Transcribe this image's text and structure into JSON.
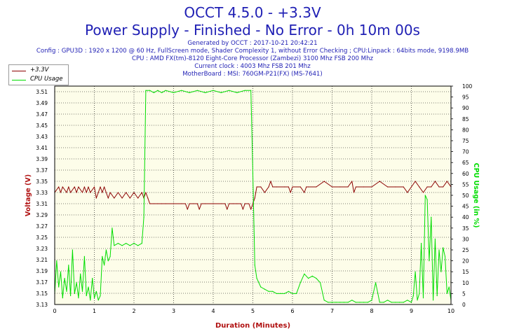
{
  "header": {
    "title": "OCCT 4.5.0 - +3.3V",
    "subtitle": "Power Supply - Finished - No Error - 0h 10m 00s",
    "info": [
      "Generated by OCCT : 2017-10-21 20:42:21",
      "Config : GPU3D : 1920 x 1200 @ 60 Hz, FullScreen mode, Shader Complexity 1, without Error Checking ; CPU:Linpack : 64bits mode, 9198.9MB",
      "CPU : AMD FX(tm)-8120 Eight-Core Processor (Zambezi) 3100 Mhz FSB 200 Mhz",
      "Current clock : 4003 Mhz FSB 201 Mhz",
      "MotherBoard : MSI: 760GM-P21(FX) (MS-7641)"
    ]
  },
  "colors": {
    "voltage": "#8b0000",
    "cpu": "#00dd00",
    "plot_bg": "#fdfde9",
    "grid": "#000000",
    "title": "#1f1fb4",
    "axis_label": "#b01010"
  },
  "chart_data": {
    "type": "line",
    "xlabel": "Duration (Minutes)",
    "ylabel": "Voltage (V)",
    "y2label": "CPU Usage (in %)",
    "xlim": [
      0,
      10
    ],
    "ylim": [
      3.13,
      3.52
    ],
    "y2lim": [
      0,
      100
    ],
    "x_ticks": [
      "0",
      "1",
      "2",
      "3",
      "4",
      "5",
      "6",
      "7",
      "8",
      "9",
      "10"
    ],
    "y_ticks": [
      "3.13",
      "3.15",
      "3.17",
      "3.19",
      "3.21",
      "3.23",
      "3.25",
      "3.27",
      "3.29",
      "3.31",
      "3.33",
      "3.35",
      "3.37",
      "3.39",
      "3.41",
      "3.43",
      "3.45",
      "3.47",
      "3.49",
      "3.51"
    ],
    "y2_ticks": [
      "0",
      "5",
      "10",
      "15",
      "20",
      "25",
      "30",
      "35",
      "40",
      "45",
      "50",
      "55",
      "60",
      "65",
      "70",
      "75",
      "80",
      "85",
      "90",
      "95",
      "100"
    ],
    "grid": "dotted",
    "legend_position": "top-left",
    "series": [
      {
        "name": "+3.3V",
        "axis": "left",
        "x": [
          0,
          0.1,
          0.15,
          0.2,
          0.3,
          0.35,
          0.4,
          0.5,
          0.55,
          0.6,
          0.7,
          0.75,
          0.8,
          0.85,
          0.9,
          1.0,
          1.05,
          1.1,
          1.15,
          1.2,
          1.25,
          1.3,
          1.35,
          1.4,
          1.5,
          1.6,
          1.7,
          1.8,
          1.9,
          2.0,
          2.1,
          2.2,
          2.25,
          2.3,
          2.35,
          2.4,
          2.5,
          2.6,
          2.7,
          2.8,
          3.0,
          3.2,
          3.3,
          3.35,
          3.4,
          3.5,
          3.6,
          3.65,
          3.7,
          3.8,
          4.0,
          4.2,
          4.3,
          4.35,
          4.4,
          4.5,
          4.6,
          4.7,
          4.75,
          4.8,
          4.9,
          4.95,
          5.0,
          5.05,
          5.1,
          5.2,
          5.3,
          5.4,
          5.45,
          5.5,
          5.6,
          5.8,
          5.9,
          5.95,
          6.0,
          6.2,
          6.3,
          6.35,
          6.4,
          6.6,
          6.8,
          7.0,
          7.2,
          7.4,
          7.5,
          7.55,
          7.6,
          7.8,
          8.0,
          8.2,
          8.4,
          8.6,
          8.8,
          8.9,
          9.0,
          9.1,
          9.2,
          9.3,
          9.4,
          9.5,
          9.6,
          9.7,
          9.8,
          9.9,
          10.0
        ],
        "values": [
          3.33,
          3.34,
          3.33,
          3.34,
          3.33,
          3.34,
          3.33,
          3.34,
          3.33,
          3.34,
          3.33,
          3.34,
          3.33,
          3.34,
          3.33,
          3.34,
          3.32,
          3.33,
          3.34,
          3.33,
          3.34,
          3.33,
          3.32,
          3.33,
          3.32,
          3.33,
          3.32,
          3.33,
          3.32,
          3.33,
          3.32,
          3.33,
          3.32,
          3.33,
          3.32,
          3.31,
          3.31,
          3.31,
          3.31,
          3.31,
          3.31,
          3.31,
          3.31,
          3.3,
          3.31,
          3.31,
          3.31,
          3.3,
          3.31,
          3.31,
          3.31,
          3.31,
          3.31,
          3.3,
          3.31,
          3.31,
          3.31,
          3.31,
          3.3,
          3.31,
          3.31,
          3.3,
          3.31,
          3.32,
          3.34,
          3.34,
          3.33,
          3.34,
          3.35,
          3.34,
          3.34,
          3.34,
          3.34,
          3.33,
          3.34,
          3.34,
          3.33,
          3.34,
          3.34,
          3.34,
          3.35,
          3.34,
          3.34,
          3.34,
          3.35,
          3.33,
          3.34,
          3.34,
          3.34,
          3.35,
          3.34,
          3.34,
          3.34,
          3.33,
          3.34,
          3.35,
          3.34,
          3.33,
          3.34,
          3.34,
          3.35,
          3.34,
          3.34,
          3.35,
          3.34
        ]
      },
      {
        "name": "CPU Usage",
        "axis": "right",
        "x": [
          0,
          0.05,
          0.1,
          0.15,
          0.2,
          0.25,
          0.3,
          0.35,
          0.4,
          0.45,
          0.5,
          0.55,
          0.6,
          0.65,
          0.7,
          0.75,
          0.8,
          0.85,
          0.9,
          0.95,
          1.0,
          1.05,
          1.1,
          1.15,
          1.2,
          1.25,
          1.3,
          1.35,
          1.4,
          1.45,
          1.5,
          1.6,
          1.7,
          1.8,
          1.9,
          2.0,
          2.1,
          2.2,
          2.25,
          2.3,
          2.4,
          2.5,
          2.6,
          2.7,
          2.8,
          3.0,
          3.2,
          3.4,
          3.6,
          3.8,
          4.0,
          4.2,
          4.4,
          4.6,
          4.8,
          4.95,
          5.0,
          5.05,
          5.1,
          5.15,
          5.2,
          5.3,
          5.4,
          5.5,
          5.6,
          5.7,
          5.8,
          5.9,
          6.0,
          6.1,
          6.2,
          6.3,
          6.4,
          6.5,
          6.6,
          6.7,
          6.8,
          6.9,
          7.0,
          7.1,
          7.2,
          7.3,
          7.4,
          7.5,
          7.6,
          7.7,
          7.8,
          7.9,
          8.0,
          8.1,
          8.2,
          8.3,
          8.4,
          8.5,
          8.6,
          8.7,
          8.8,
          8.9,
          9.0,
          9.05,
          9.1,
          9.15,
          9.2,
          9.25,
          9.3,
          9.35,
          9.4,
          9.45,
          9.5,
          9.55,
          9.6,
          9.65,
          9.7,
          9.75,
          9.8,
          9.85,
          9.9,
          9.95,
          10.0
        ],
        "values": [
          5,
          20,
          8,
          15,
          3,
          12,
          6,
          18,
          4,
          25,
          5,
          10,
          3,
          14,
          6,
          22,
          4,
          8,
          2,
          12,
          3,
          6,
          2,
          4,
          22,
          18,
          25,
          20,
          22,
          35,
          27,
          28,
          27,
          28,
          27,
          28,
          27,
          28,
          40,
          98,
          98,
          97,
          98,
          97,
          98,
          97,
          98,
          97,
          98,
          97,
          98,
          97,
          98,
          97,
          98,
          98,
          60,
          18,
          12,
          10,
          8,
          7,
          6,
          6,
          5,
          5,
          5,
          6,
          5,
          5,
          10,
          14,
          12,
          13,
          12,
          10,
          2,
          1,
          1,
          1,
          1,
          1,
          1,
          2,
          1,
          1,
          1,
          1,
          2,
          10,
          1,
          1,
          2,
          1,
          1,
          1,
          1,
          2,
          1,
          4,
          15,
          2,
          5,
          28,
          3,
          50,
          48,
          20,
          40,
          2,
          30,
          4,
          25,
          15,
          26,
          22,
          5,
          8,
          2
        ]
      }
    ]
  }
}
